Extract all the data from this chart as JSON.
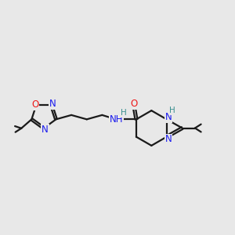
{
  "bg_color": "#e8e8e8",
  "bond_color": "#1a1a1a",
  "N_color": "#1a1aee",
  "O_color": "#ee1a1a",
  "H_color": "#3a9090",
  "lw": 1.6,
  "dbg": 0.05,
  "figsize": [
    3.0,
    3.0
  ],
  "dpi": 100,
  "xlim": [
    -0.5,
    10.5
  ],
  "ylim": [
    2.5,
    8.0
  ]
}
